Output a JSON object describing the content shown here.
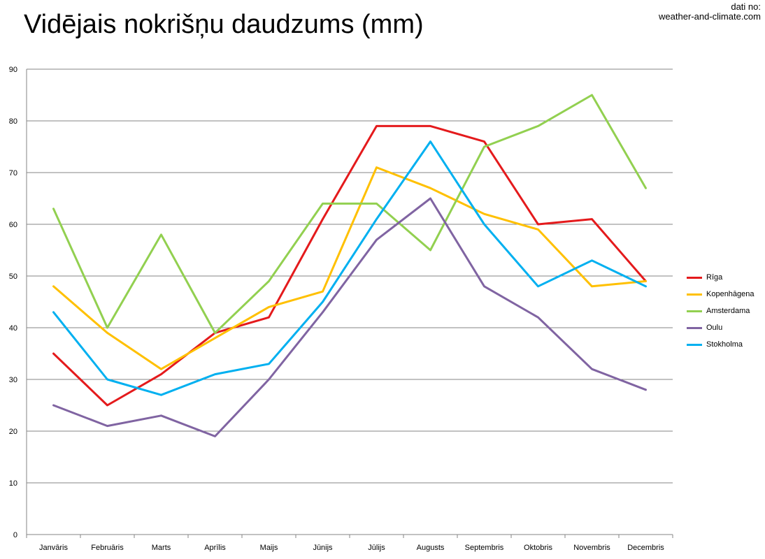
{
  "header": {
    "title": "Vidējais nokrišņu daudzums (mm)",
    "source_line1": "dati no:",
    "source_line2": "weather-and-climate.com"
  },
  "chart_data": {
    "type": "line",
    "title": "Vidējais nokrišņu daudzums (mm)",
    "xlabel": "",
    "ylabel": "",
    "ylim": [
      0,
      90
    ],
    "yticks": [
      0,
      10,
      20,
      30,
      40,
      50,
      60,
      70,
      80,
      90
    ],
    "grid": true,
    "legend_position": "right",
    "categories": [
      "Janvāris",
      "Februāris",
      "Marts",
      "Aprīlis",
      "Maijs",
      "Jūnijs",
      "Jūlijs",
      "Augusts",
      "Septembris",
      "Oktobris",
      "Novembris",
      "Decembris"
    ],
    "series": [
      {
        "name": "Rīga",
        "color": "#e41a1c",
        "values": [
          35,
          25,
          31,
          39,
          42,
          61,
          79,
          79,
          76,
          60,
          61,
          49
        ]
      },
      {
        "name": "Kopenhāgena",
        "color": "#ffc000",
        "values": [
          48,
          39,
          32,
          38,
          44,
          47,
          71,
          67,
          62,
          59,
          48,
          49
        ]
      },
      {
        "name": "Amsterdama",
        "color": "#92d050",
        "values": [
          63,
          40,
          58,
          39,
          49,
          64,
          64,
          55,
          75,
          79,
          85,
          67
        ]
      },
      {
        "name": "Oulu",
        "color": "#8064a2",
        "values": [
          25,
          21,
          23,
          19,
          30,
          43,
          57,
          65,
          48,
          42,
          32,
          28
        ]
      },
      {
        "name": "Stokholma",
        "color": "#00b0f0",
        "values": [
          43,
          30,
          27,
          31,
          33,
          45,
          61,
          76,
          60,
          48,
          53,
          48
        ]
      }
    ]
  }
}
